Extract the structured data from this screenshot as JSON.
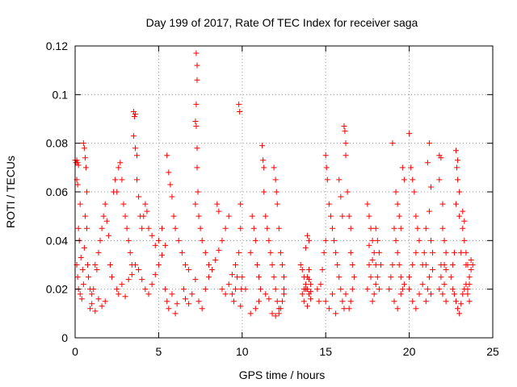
{
  "chart_data": {
    "type": "scatter",
    "title": "Day 199 of 2017, Rate Of TEC Index for receiver saga",
    "xlabel": "GPS time / hours",
    "ylabel": "ROTI / TECUs",
    "xlim": [
      0,
      25
    ],
    "ylim": [
      0,
      0.12
    ],
    "x_ticks": [
      0,
      5,
      10,
      15,
      20,
      25
    ],
    "y_ticks": [
      0,
      0.02,
      0.04,
      0.06,
      0.08,
      0.1,
      0.12
    ],
    "x_tick_labels": [
      "0",
      "5",
      "10",
      "15",
      "20",
      "25"
    ],
    "y_tick_labels": [
      "0",
      "0.02",
      "0.04",
      "0.06",
      "0.08",
      "0.1",
      "0.12"
    ],
    "grid": true,
    "marker": "+",
    "color": "#ff0000",
    "points": [
      [
        0.0,
        0.073
      ],
      [
        0.05,
        0.072
      ],
      [
        0.1,
        0.073
      ],
      [
        0.15,
        0.072
      ],
      [
        0.2,
        0.071
      ],
      [
        0.1,
        0.065
      ],
      [
        0.15,
        0.063
      ],
      [
        0.3,
        0.055
      ],
      [
        0.2,
        0.045
      ],
      [
        0.25,
        0.04
      ],
      [
        0.1,
        0.03
      ],
      [
        0.15,
        0.025
      ],
      [
        0.2,
        0.02
      ],
      [
        0.3,
        0.018
      ],
      [
        0.4,
        0.016
      ],
      [
        0.5,
        0.022
      ],
      [
        0.35,
        0.033
      ],
      [
        0.45,
        0.028
      ],
      [
        0.55,
        0.037
      ],
      [
        0.5,
        0.08
      ],
      [
        0.55,
        0.078
      ],
      [
        0.6,
        0.074
      ],
      [
        0.65,
        0.07
      ],
      [
        0.7,
        0.06
      ],
      [
        0.6,
        0.05
      ],
      [
        0.7,
        0.045
      ],
      [
        0.75,
        0.03
      ],
      [
        0.8,
        0.025
      ],
      [
        0.9,
        0.02
      ],
      [
        1.0,
        0.018
      ],
      [
        1.1,
        0.02
      ],
      [
        1.2,
        0.03
      ],
      [
        1.3,
        0.028
      ],
      [
        1.4,
        0.035
      ],
      [
        1.5,
        0.04
      ],
      [
        1.6,
        0.045
      ],
      [
        1.7,
        0.05
      ],
      [
        1.8,
        0.055
      ],
      [
        1.9,
        0.048
      ],
      [
        2.0,
        0.042
      ],
      [
        0.9,
        0.012
      ],
      [
        1.0,
        0.014
      ],
      [
        1.2,
        0.011
      ],
      [
        1.4,
        0.016
      ],
      [
        1.6,
        0.013
      ],
      [
        1.8,
        0.015
      ],
      [
        2.1,
        0.03
      ],
      [
        2.2,
        0.025
      ],
      [
        2.3,
        0.06
      ],
      [
        2.4,
        0.065
      ],
      [
        2.5,
        0.06
      ],
      [
        2.6,
        0.07
      ],
      [
        2.7,
        0.072
      ],
      [
        2.8,
        0.065
      ],
      [
        2.9,
        0.055
      ],
      [
        3.0,
        0.05
      ],
      [
        3.1,
        0.045
      ],
      [
        3.2,
        0.04
      ],
      [
        3.3,
        0.035
      ],
      [
        3.4,
        0.03
      ],
      [
        2.5,
        0.02
      ],
      [
        2.6,
        0.018
      ],
      [
        2.8,
        0.022
      ],
      [
        3.0,
        0.017
      ],
      [
        3.2,
        0.024
      ],
      [
        3.4,
        0.026
      ],
      [
        3.5,
        0.093
      ],
      [
        3.55,
        0.091
      ],
      [
        3.6,
        0.092
      ],
      [
        3.5,
        0.083
      ],
      [
        3.6,
        0.078
      ],
      [
        3.7,
        0.075
      ],
      [
        3.7,
        0.065
      ],
      [
        3.8,
        0.058
      ],
      [
        3.9,
        0.05
      ],
      [
        4.0,
        0.045
      ],
      [
        4.1,
        0.05
      ],
      [
        4.2,
        0.055
      ],
      [
        4.3,
        0.052
      ],
      [
        4.4,
        0.045
      ],
      [
        3.6,
        0.03
      ],
      [
        3.8,
        0.028
      ],
      [
        4.0,
        0.024
      ],
      [
        4.2,
        0.02
      ],
      [
        4.4,
        0.018
      ],
      [
        4.6,
        0.022
      ],
      [
        4.8,
        0.026
      ],
      [
        5.0,
        0.03
      ],
      [
        5.2,
        0.034
      ],
      [
        5.4,
        0.038
      ],
      [
        4.6,
        0.042
      ],
      [
        4.8,
        0.038
      ],
      [
        5.0,
        0.04
      ],
      [
        5.2,
        0.045
      ],
      [
        5.4,
        0.02
      ],
      [
        5.5,
        0.015
      ],
      [
        5.6,
        0.012
      ],
      [
        5.8,
        0.018
      ],
      [
        6.0,
        0.01
      ],
      [
        6.1,
        0.014
      ],
      [
        5.5,
        0.075
      ],
      [
        5.6,
        0.068
      ],
      [
        5.7,
        0.063
      ],
      [
        5.8,
        0.058
      ],
      [
        5.9,
        0.05
      ],
      [
        6.0,
        0.045
      ],
      [
        6.2,
        0.04
      ],
      [
        6.4,
        0.035
      ],
      [
        6.6,
        0.03
      ],
      [
        6.8,
        0.028
      ],
      [
        6.5,
        0.02
      ],
      [
        6.6,
        0.016
      ],
      [
        6.8,
        0.014
      ],
      [
        7.0,
        0.018
      ],
      [
        7.2,
        0.024
      ],
      [
        7.25,
        0.117
      ],
      [
        7.3,
        0.112
      ],
      [
        7.3,
        0.106
      ],
      [
        7.25,
        0.096
      ],
      [
        7.2,
        0.089
      ],
      [
        7.25,
        0.087
      ],
      [
        7.3,
        0.078
      ],
      [
        7.3,
        0.07
      ],
      [
        7.35,
        0.06
      ],
      [
        7.2,
        0.055
      ],
      [
        7.4,
        0.05
      ],
      [
        7.5,
        0.045
      ],
      [
        7.6,
        0.04
      ],
      [
        7.8,
        0.035
      ],
      [
        8.0,
        0.03
      ],
      [
        7.4,
        0.015
      ],
      [
        7.6,
        0.012
      ],
      [
        7.8,
        0.02
      ],
      [
        8.0,
        0.025
      ],
      [
        8.2,
        0.028
      ],
      [
        8.4,
        0.032
      ],
      [
        8.6,
        0.036
      ],
      [
        8.8,
        0.04
      ],
      [
        9.0,
        0.045
      ],
      [
        9.2,
        0.05
      ],
      [
        8.5,
        0.055
      ],
      [
        8.6,
        0.052
      ],
      [
        8.8,
        0.02
      ],
      [
        9.0,
        0.018
      ],
      [
        9.2,
        0.022
      ],
      [
        9.4,
        0.026
      ],
      [
        9.6,
        0.03
      ],
      [
        9.8,
        0.096
      ],
      [
        9.85,
        0.093
      ],
      [
        9.9,
        0.055
      ],
      [
        9.9,
        0.045
      ],
      [
        9.8,
        0.035
      ],
      [
        9.7,
        0.025
      ],
      [
        9.6,
        0.02
      ],
      [
        9.5,
        0.015
      ],
      [
        9.4,
        0.018
      ],
      [
        9.9,
        0.013
      ],
      [
        9.95,
        0.02
      ],
      [
        10.0,
        0.025
      ],
      [
        10.2,
        0.02
      ],
      [
        10.5,
        0.035
      ],
      [
        10.6,
        0.05
      ],
      [
        10.7,
        0.045
      ],
      [
        10.8,
        0.04
      ],
      [
        10.9,
        0.03
      ],
      [
        11.0,
        0.025
      ],
      [
        11.1,
        0.02
      ],
      [
        11.2,
        0.079
      ],
      [
        11.25,
        0.073
      ],
      [
        11.3,
        0.07
      ],
      [
        11.3,
        0.06
      ],
      [
        11.4,
        0.05
      ],
      [
        11.5,
        0.045
      ],
      [
        11.6,
        0.04
      ],
      [
        11.7,
        0.035
      ],
      [
        11.8,
        0.03
      ],
      [
        11.9,
        0.025
      ],
      [
        12.0,
        0.02
      ],
      [
        12.1,
        0.015
      ],
      [
        12.2,
        0.012
      ],
      [
        11.9,
        0.07
      ],
      [
        12.0,
        0.065
      ],
      [
        12.05,
        0.06
      ],
      [
        12.1,
        0.055
      ],
      [
        12.2,
        0.045
      ],
      [
        12.3,
        0.035
      ],
      [
        12.4,
        0.03
      ],
      [
        12.5,
        0.025
      ],
      [
        12.5,
        0.02
      ],
      [
        12.3,
        0.012
      ],
      [
        10.5,
        0.01
      ],
      [
        10.8,
        0.012
      ],
      [
        11.0,
        0.015
      ],
      [
        11.4,
        0.018
      ],
      [
        11.6,
        0.016
      ],
      [
        11.8,
        0.01
      ],
      [
        12.0,
        0.009
      ],
      [
        12.2,
        0.01
      ],
      [
        12.4,
        0.015
      ],
      [
        12.5,
        0.018
      ],
      [
        13.5,
        0.03
      ],
      [
        13.6,
        0.028
      ],
      [
        13.7,
        0.025
      ],
      [
        13.8,
        0.022
      ],
      [
        13.9,
        0.02
      ],
      [
        14.0,
        0.018
      ],
      [
        14.1,
        0.016
      ],
      [
        13.7,
        0.015
      ],
      [
        13.9,
        0.013
      ],
      [
        13.8,
        0.037
      ],
      [
        13.9,
        0.042
      ],
      [
        14.0,
        0.04
      ],
      [
        13.8,
        0.02
      ],
      [
        14.0,
        0.024
      ],
      [
        14.1,
        0.022
      ],
      [
        13.6,
        0.018
      ],
      [
        13.7,
        0.02
      ],
      [
        13.9,
        0.025
      ],
      [
        14.0,
        0.028
      ],
      [
        14.1,
        0.019
      ],
      [
        14.5,
        0.02
      ],
      [
        14.6,
        0.015
      ],
      [
        14.7,
        0.022
      ],
      [
        14.8,
        0.028
      ],
      [
        14.9,
        0.035
      ],
      [
        15.0,
        0.04
      ],
      [
        15.0,
        0.075
      ],
      [
        15.05,
        0.07
      ],
      [
        15.1,
        0.065
      ],
      [
        15.2,
        0.055
      ],
      [
        15.3,
        0.05
      ],
      [
        15.4,
        0.045
      ],
      [
        15.5,
        0.04
      ],
      [
        15.6,
        0.035
      ],
      [
        15.7,
        0.03
      ],
      [
        15.8,
        0.025
      ],
      [
        15.9,
        0.02
      ],
      [
        16.0,
        0.015
      ],
      [
        16.1,
        0.012
      ],
      [
        16.2,
        0.018
      ],
      [
        15.8,
        0.065
      ],
      [
        15.9,
        0.058
      ],
      [
        16.0,
        0.05
      ],
      [
        16.1,
        0.087
      ],
      [
        16.15,
        0.085
      ],
      [
        16.2,
        0.08
      ],
      [
        16.2,
        0.075
      ],
      [
        16.3,
        0.06
      ],
      [
        16.4,
        0.05
      ],
      [
        16.5,
        0.045
      ],
      [
        16.5,
        0.035
      ],
      [
        16.6,
        0.03
      ],
      [
        16.7,
        0.025
      ],
      [
        16.6,
        0.02
      ],
      [
        16.5,
        0.015
      ],
      [
        16.4,
        0.012
      ],
      [
        15.2,
        0.012
      ],
      [
        15.4,
        0.018
      ],
      [
        15.6,
        0.01
      ],
      [
        15.0,
        0.015
      ],
      [
        17.5,
        0.055
      ],
      [
        17.6,
        0.05
      ],
      [
        17.7,
        0.045
      ],
      [
        17.8,
        0.04
      ],
      [
        17.9,
        0.035
      ],
      [
        18.0,
        0.03
      ],
      [
        18.1,
        0.025
      ],
      [
        18.2,
        0.02
      ],
      [
        18.0,
        0.045
      ],
      [
        17.6,
        0.03
      ],
      [
        17.5,
        0.02
      ],
      [
        17.7,
        0.025
      ],
      [
        17.8,
        0.015
      ],
      [
        17.9,
        0.018
      ],
      [
        18.0,
        0.022
      ],
      [
        18.2,
        0.035
      ],
      [
        18.3,
        0.03
      ],
      [
        18.1,
        0.04
      ],
      [
        17.6,
        0.038
      ],
      [
        17.8,
        0.032
      ],
      [
        18.8,
        0.02
      ],
      [
        18.9,
        0.025
      ],
      [
        19.0,
        0.03
      ],
      [
        19.0,
        0.08
      ],
      [
        19.1,
        0.045
      ],
      [
        19.2,
        0.04
      ],
      [
        19.3,
        0.035
      ],
      [
        19.4,
        0.03
      ],
      [
        19.5,
        0.025
      ],
      [
        19.6,
        0.02
      ],
      [
        19.2,
        0.06
      ],
      [
        19.3,
        0.055
      ],
      [
        19.4,
        0.05
      ],
      [
        19.5,
        0.045
      ],
      [
        19.6,
        0.07
      ],
      [
        19.7,
        0.065
      ],
      [
        19.1,
        0.015
      ],
      [
        19.3,
        0.012
      ],
      [
        19.5,
        0.018
      ],
      [
        19.7,
        0.022
      ],
      [
        20.0,
        0.084
      ],
      [
        20.1,
        0.07
      ],
      [
        20.2,
        0.065
      ],
      [
        20.3,
        0.06
      ],
      [
        20.4,
        0.05
      ],
      [
        20.5,
        0.045
      ],
      [
        20.6,
        0.04
      ],
      [
        20.4,
        0.035
      ],
      [
        20.2,
        0.03
      ],
      [
        20.0,
        0.025
      ],
      [
        20.0,
        0.02
      ],
      [
        20.2,
        0.015
      ],
      [
        20.4,
        0.012
      ],
      [
        20.6,
        0.018
      ],
      [
        20.8,
        0.022
      ],
      [
        21.0,
        0.03
      ],
      [
        21.2,
        0.08
      ],
      [
        21.1,
        0.072
      ],
      [
        21.3,
        0.062
      ],
      [
        21.2,
        0.052
      ],
      [
        21.0,
        0.045
      ],
      [
        21.3,
        0.04
      ],
      [
        21.4,
        0.035
      ],
      [
        21.2,
        0.025
      ],
      [
        21.1,
        0.02
      ],
      [
        21.3,
        0.018
      ],
      [
        21.0,
        0.015
      ],
      [
        20.8,
        0.03
      ],
      [
        20.9,
        0.035
      ],
      [
        21.4,
        0.028
      ],
      [
        21.8,
        0.075
      ],
      [
        21.9,
        0.074
      ],
      [
        21.8,
        0.065
      ],
      [
        22.0,
        0.055
      ],
      [
        22.0,
        0.045
      ],
      [
        22.1,
        0.04
      ],
      [
        22.2,
        0.035
      ],
      [
        22.1,
        0.03
      ],
      [
        21.9,
        0.025
      ],
      [
        21.8,
        0.02
      ],
      [
        22.0,
        0.018
      ],
      [
        22.2,
        0.015
      ],
      [
        22.1,
        0.022
      ],
      [
        21.9,
        0.03
      ],
      [
        22.2,
        0.028
      ],
      [
        22.5,
        0.025
      ],
      [
        22.6,
        0.03
      ],
      [
        22.7,
        0.035
      ],
      [
        22.8,
        0.077
      ],
      [
        22.9,
        0.073
      ],
      [
        22.85,
        0.07
      ],
      [
        22.9,
        0.065
      ],
      [
        23.0,
        0.06
      ],
      [
        22.8,
        0.055
      ],
      [
        23.0,
        0.05
      ],
      [
        23.2,
        0.045
      ],
      [
        23.3,
        0.04
      ],
      [
        23.4,
        0.035
      ],
      [
        23.5,
        0.03
      ],
      [
        23.6,
        0.025
      ],
      [
        22.8,
        0.015
      ],
      [
        22.9,
        0.012
      ],
      [
        23.0,
        0.01
      ],
      [
        23.1,
        0.014
      ],
      [
        23.2,
        0.018
      ],
      [
        23.3,
        0.02
      ],
      [
        23.4,
        0.022
      ],
      [
        23.5,
        0.018
      ],
      [
        23.6,
        0.022
      ],
      [
        23.7,
        0.028
      ],
      [
        23.2,
        0.052
      ],
      [
        23.3,
        0.048
      ],
      [
        23.1,
        0.035
      ],
      [
        22.6,
        0.02
      ],
      [
        22.7,
        0.018
      ],
      [
        23.6,
        0.015
      ],
      [
        23.5,
        0.02
      ],
      [
        23.4,
        0.03
      ],
      [
        23.7,
        0.032
      ],
      [
        23.8,
        0.03
      ]
    ]
  }
}
